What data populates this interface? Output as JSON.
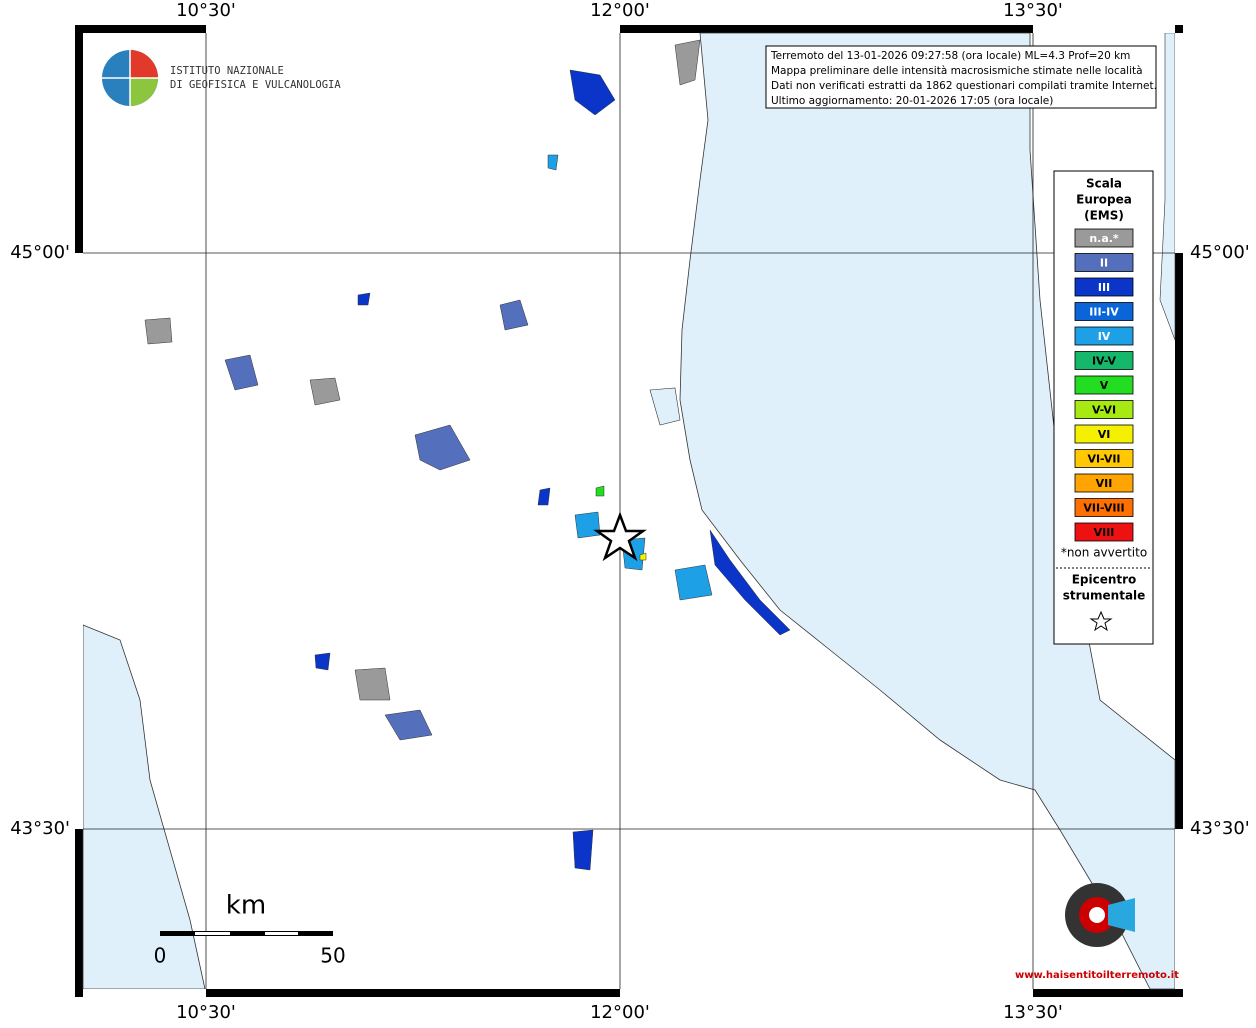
{
  "map": {
    "lon_labels": [
      "10°30'",
      "12°00'",
      "13°30'"
    ],
    "lat_labels": [
      "45°00'",
      "43°30'"
    ],
    "info_lines": [
      "Terremoto del 13-01-2026 09:27:58 (ora locale) ML=4.3 Prof=20 km",
      "Mappa preliminare delle intensità macrosismiche stimate nelle località",
      "Dati non verificati estratti da 1862 questionari compilati tramite Internet.",
      "Ultimo aggiornamento: 20-01-2026 17:05 (ora locale)"
    ],
    "logo": [
      "ISTITUTO NAZIONALE",
      "DI GEOFISICA E VULCANOLOGIA"
    ],
    "legend": {
      "title": [
        "Scala",
        "Europea",
        "(EMS)"
      ],
      "classes": [
        {
          "label": "n.a.*",
          "color": "#9a9a9a"
        },
        {
          "label": "II",
          "color": "#5470bd"
        },
        {
          "label": "III",
          "color": "#0a35c8"
        },
        {
          "label": "III-IV",
          "color": "#0a66d8"
        },
        {
          "label": "IV",
          "color": "#1ea0e6"
        },
        {
          "label": "IV-V",
          "color": "#15b86a"
        },
        {
          "label": "V",
          "color": "#22dd22"
        },
        {
          "label": "V-VI",
          "color": "#a6ea12"
        },
        {
          "label": "VI",
          "color": "#f4f000"
        },
        {
          "label": "VI-VII",
          "color": "#ffc800"
        },
        {
          "label": "VII",
          "color": "#ffa400"
        },
        {
          "label": "VII-VIII",
          "color": "#ff7000"
        },
        {
          "label": "VIII",
          "color": "#ee1111"
        }
      ],
      "note": "*non avvertito",
      "epicenter": [
        "Epicentro",
        "strumentale"
      ]
    },
    "scale": {
      "unit": "km",
      "ticks": [
        "0",
        "50"
      ]
    },
    "badge": "www.haisentitoilterremoto.it"
  }
}
